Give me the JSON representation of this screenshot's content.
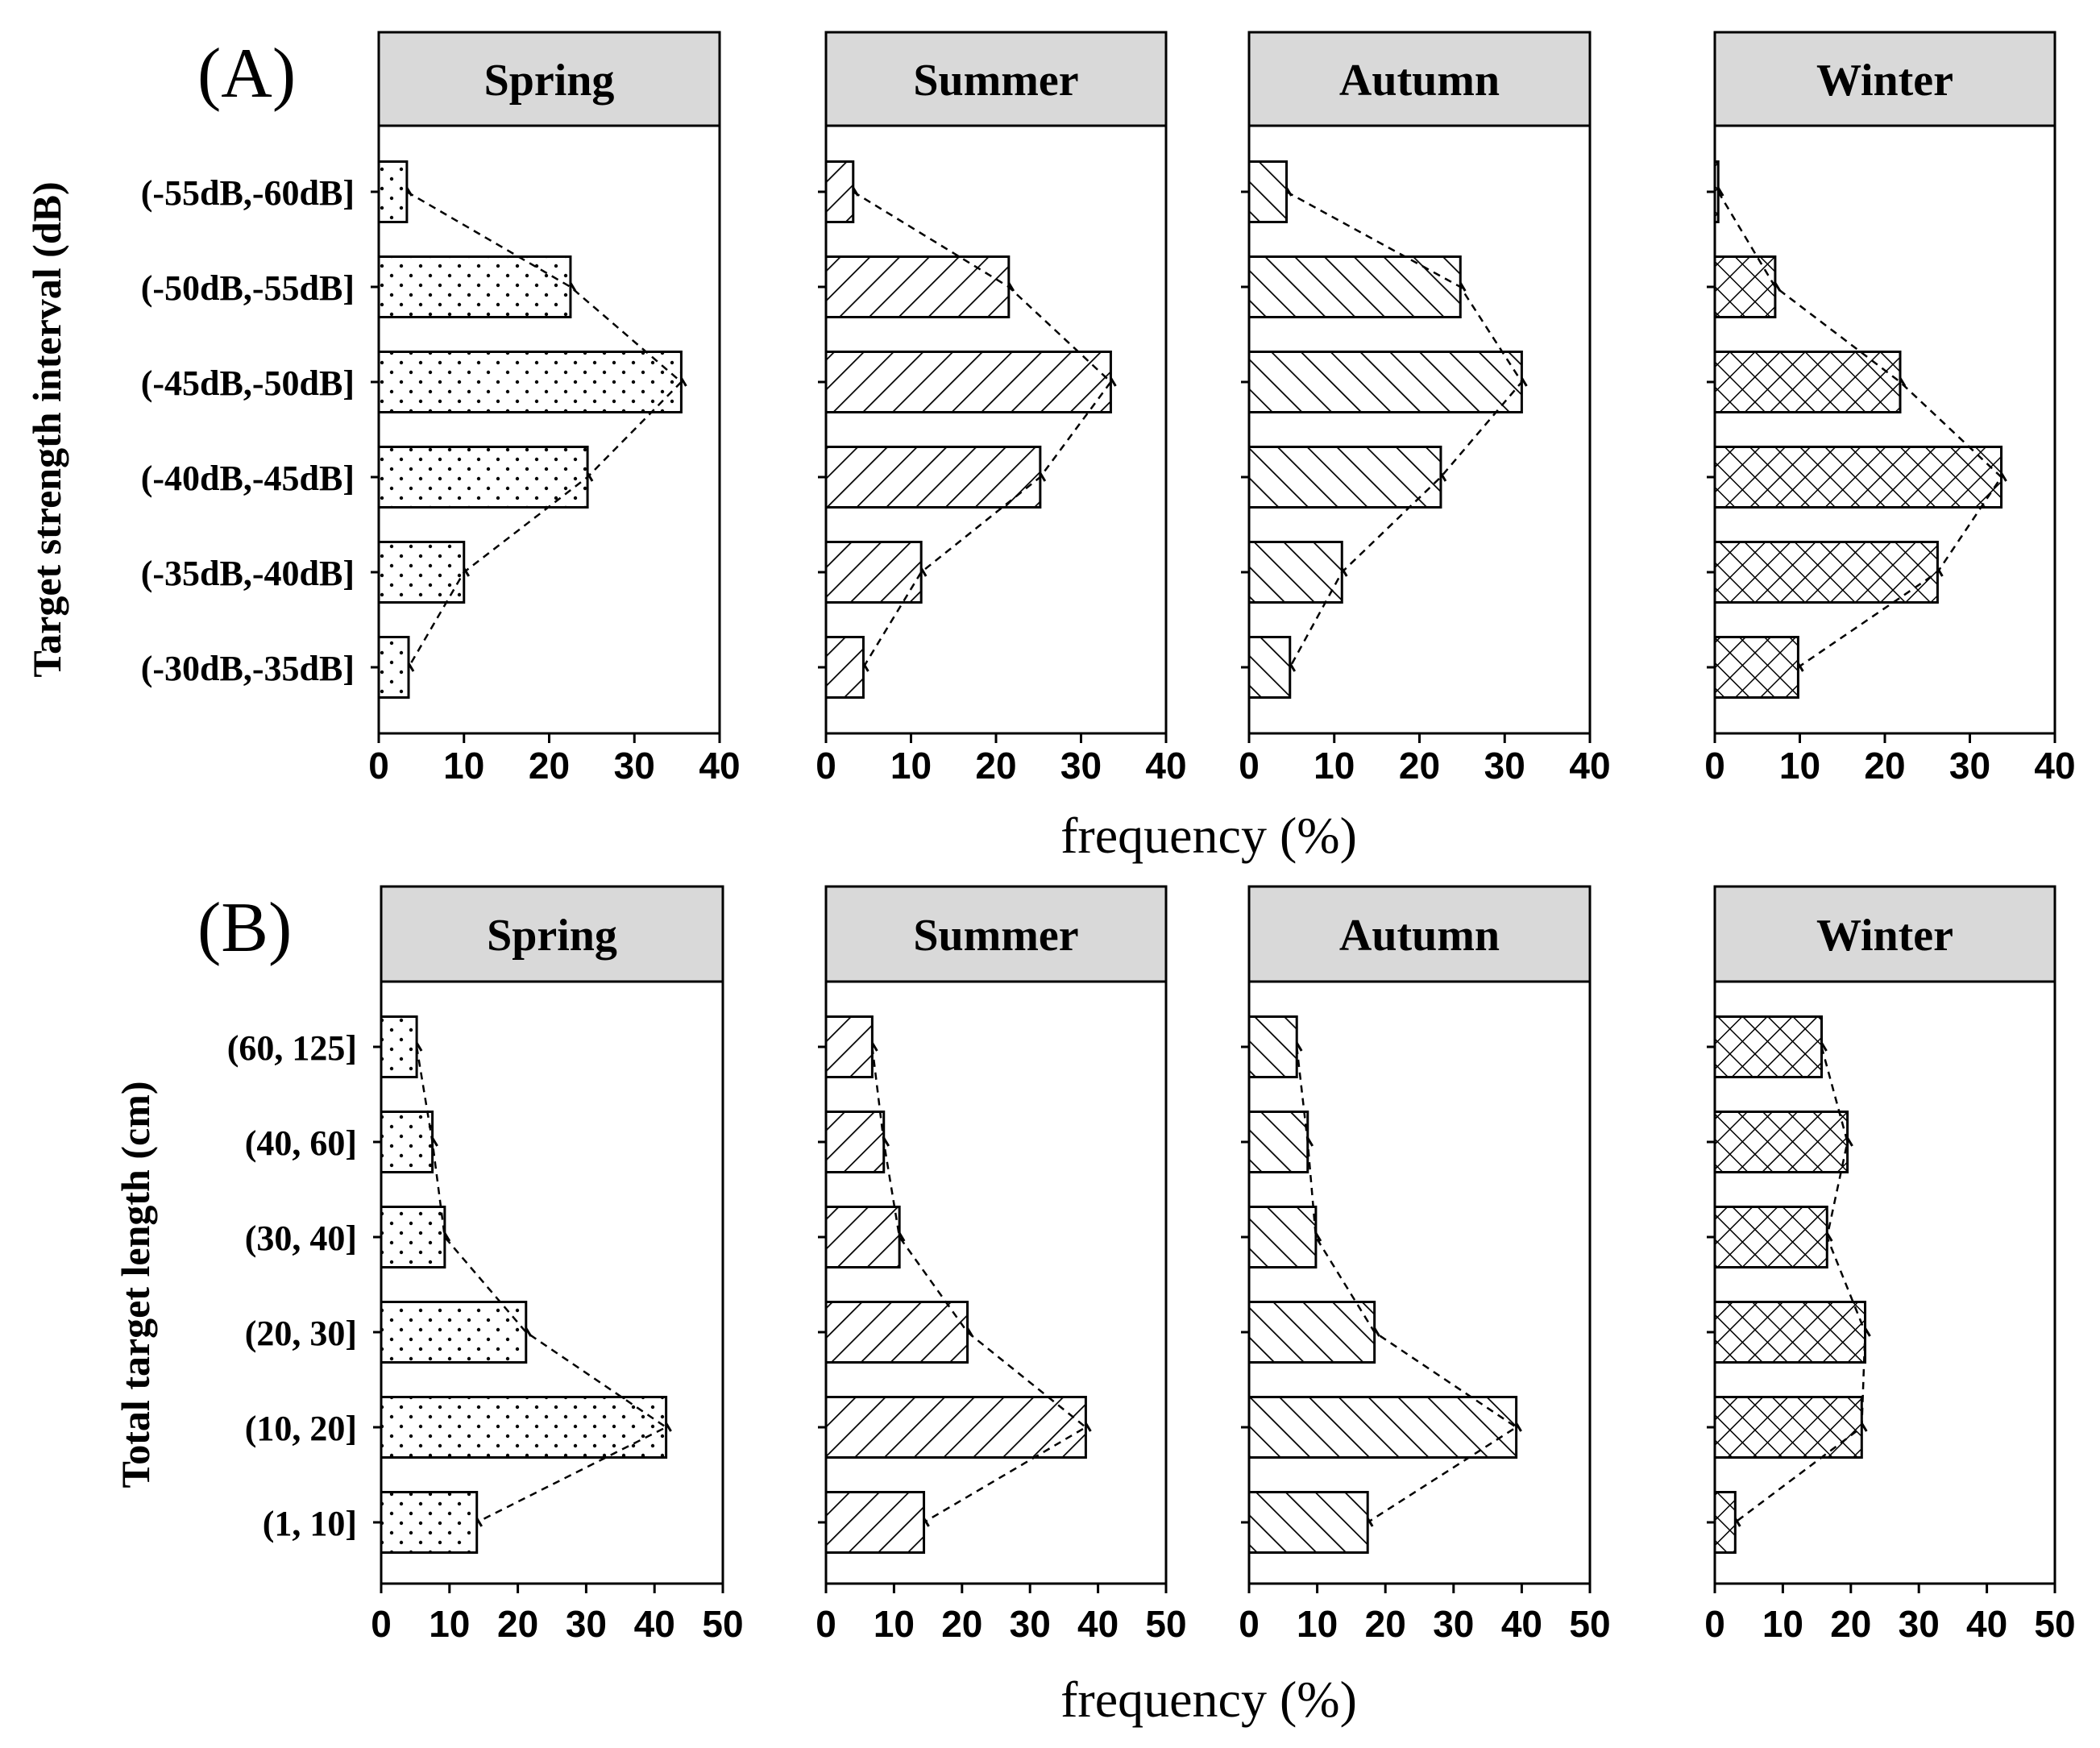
{
  "figure": {
    "colors": {
      "header_fill": "#d9d9d9",
      "stroke": "#000000",
      "background": "#ffffff"
    }
  },
  "chart_data": [
    {
      "type": "bar",
      "orientation": "horizontal",
      "panel_label": "(A)",
      "ylabel": "Target strength interval (dB)",
      "xlabel": "frequency (%)",
      "xlim": [
        0,
        40
      ],
      "xticks": [
        "0",
        "10",
        "20",
        "30",
        "40"
      ],
      "categories": [
        "(-55dB,-60dB]",
        "(-50dB,-55dB]",
        "(-45dB,-50dB]",
        "(-40dB,-45dB]",
        "(-35dB,-40dB]",
        "(-30dB,-35dB]"
      ],
      "connector": "dashed line through bar ends",
      "series": [
        {
          "name": "Spring",
          "pattern": "dots",
          "values": [
            3.3,
            22.5,
            35.5,
            24.5,
            10.0,
            3.5
          ]
        },
        {
          "name": "Summer",
          "pattern": "diagonal",
          "values": [
            3.2,
            21.5,
            33.5,
            25.2,
            11.2,
            4.4
          ]
        },
        {
          "name": "Autumn",
          "pattern": "back-diagonal",
          "values": [
            4.4,
            24.8,
            32.0,
            22.5,
            10.9,
            4.8
          ]
        },
        {
          "name": "Winter",
          "pattern": "crosshatch",
          "values": [
            0.4,
            7.1,
            21.8,
            33.7,
            26.2,
            9.8
          ]
        }
      ]
    },
    {
      "type": "bar",
      "orientation": "horizontal",
      "panel_label": "(B)",
      "ylabel": "Total target length (cm)",
      "xlabel": "frequency (%)",
      "xlim": [
        0,
        50
      ],
      "xticks": [
        "0",
        "10",
        "20",
        "30",
        "40",
        "50"
      ],
      "categories": [
        "(60, 125]",
        "(40, 60]",
        "(30, 40]",
        "(20, 30]",
        "(10, 20]",
        "(1, 10]"
      ],
      "connector": "dashed line through bar ends",
      "series": [
        {
          "name": "Spring",
          "pattern": "dots",
          "values": [
            5.2,
            7.5,
            9.3,
            21.2,
            41.7,
            14.0
          ]
        },
        {
          "name": "Summer",
          "pattern": "diagonal",
          "values": [
            6.8,
            8.5,
            10.8,
            20.8,
            38.2,
            14.4
          ]
        },
        {
          "name": "Autumn",
          "pattern": "back-diagonal",
          "values": [
            7.0,
            8.6,
            9.8,
            18.4,
            39.2,
            17.4
          ]
        },
        {
          "name": "Winter",
          "pattern": "crosshatch",
          "values": [
            15.7,
            19.5,
            16.5,
            22.1,
            21.6,
            3.0
          ]
        }
      ]
    }
  ]
}
